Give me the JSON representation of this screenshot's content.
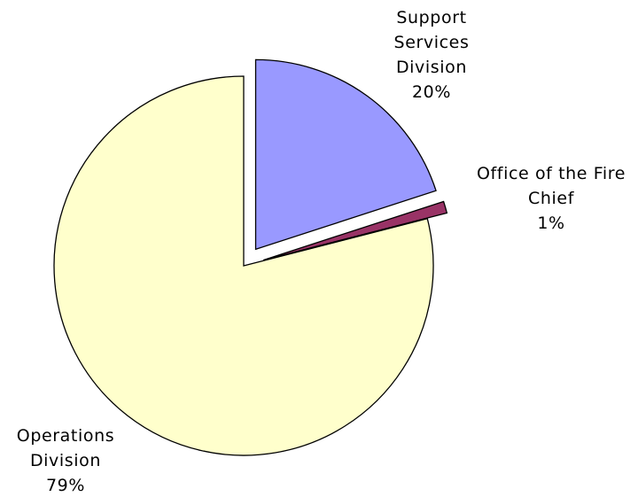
{
  "chart_data": {
    "type": "pie",
    "title": "",
    "slices": [
      {
        "label_lines": [
          "Support",
          "Services",
          "Division"
        ],
        "percent_label": "20%",
        "value": 20,
        "color": "#9999ff",
        "exploded": true
      },
      {
        "label_lines": [
          "Office of the Fire",
          "Chief"
        ],
        "percent_label": "1%",
        "value": 1,
        "color": "#993366",
        "exploded": true
      },
      {
        "label_lines": [
          "Operations",
          "Division"
        ],
        "percent_label": "79%",
        "value": 79,
        "color": "#ffffcc",
        "exploded": false
      }
    ],
    "start_angle_deg": 0,
    "direction": "clockwise",
    "legend": "none"
  }
}
